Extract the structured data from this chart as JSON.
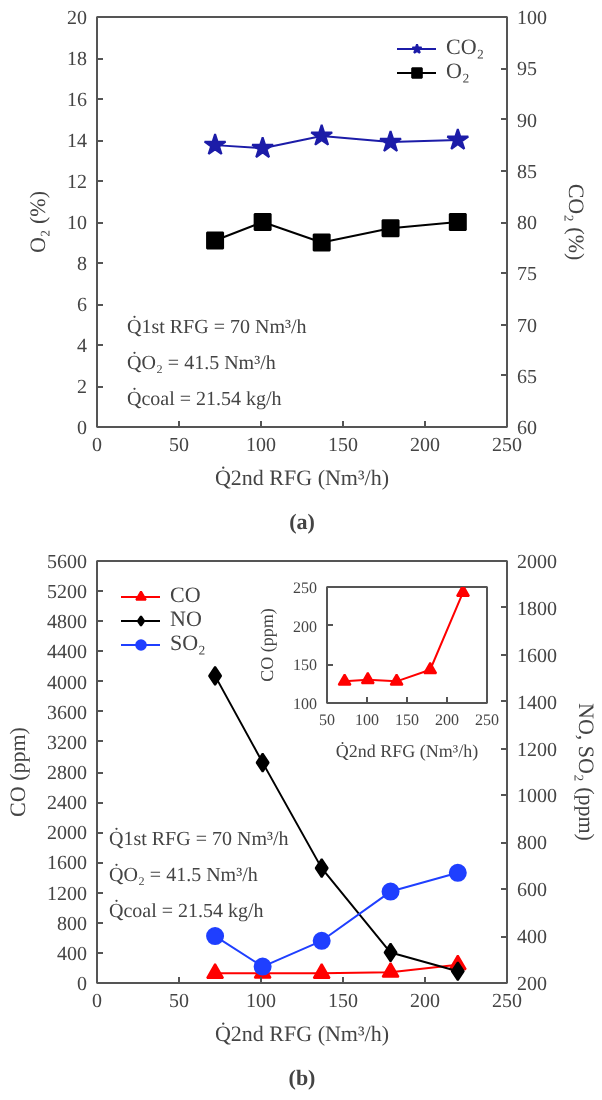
{
  "chart_data": [
    {
      "type": "line",
      "xlabel": "Q̇2nd RFG (Nm³/h)",
      "ylabel": "O₂ (%)",
      "y2label": "CO₂ (%)",
      "annotations": [
        "Q̇1st RFG = 70 Nm³/h",
        "Q̇O₂ = 41.5 Nm³/h",
        "Q̇coal = 21.54 kg/h",
        "(a)"
      ],
      "x": [
        72,
        101,
        137,
        179,
        220
      ],
      "series": [
        {
          "name": "CO₂",
          "color": "#1c1ca8",
          "axis": "y2",
          "marker": "star",
          "values": [
            87.5,
            87.2,
            88.4,
            87.8,
            88.0
          ]
        },
        {
          "name": "O₂",
          "color": "#000000",
          "marker": "square",
          "values": [
            9.1,
            10.0,
            9.0,
            9.7,
            10.0
          ]
        }
      ],
      "xlim": [
        0,
        250
      ],
      "xticks": [
        0,
        50,
        100,
        150,
        200,
        250
      ],
      "ylim": [
        0,
        20
      ],
      "yticks": [
        0,
        2,
        4,
        6,
        8,
        10,
        12,
        14,
        16,
        18,
        20
      ],
      "y2lim": [
        60,
        100
      ],
      "y2ticks": [
        60,
        65,
        70,
        75,
        80,
        85,
        90,
        95,
        100
      ],
      "grid": false,
      "legend": "top right",
      "line_style": "solid"
    },
    {
      "type": "line",
      "xlabel": "Q̇2nd RFG (Nm³/h)",
      "ylabel": "CO (ppm)",
      "y2label": "NO, SO₂ (ppm)",
      "annotations": [
        "Q̇1st RFG = 70 Nm³/h",
        "Q̇O₂ = 41.5 Nm³/h",
        "Q̇coal = 21.54 kg/h",
        "(b)"
      ],
      "x": [
        72,
        101,
        137,
        179,
        220
      ],
      "series": [
        {
          "name": "CO",
          "color": "#ff0000",
          "marker": "triangle",
          "values": [
            128,
            130,
            128,
            143,
            243
          ]
        },
        {
          "name": "NO",
          "color": "#000000",
          "axis": "y2",
          "marker": "diamond",
          "values": [
            1510,
            1140,
            690,
            330,
            250
          ]
        },
        {
          "name": "SO₂",
          "color": "#1f3fff",
          "axis": "y2",
          "marker": "circle",
          "values": [
            400,
            270,
            380,
            590,
            670
          ]
        }
      ],
      "xlim": [
        0,
        250
      ],
      "xticks": [
        0,
        50,
        100,
        150,
        200,
        250
      ],
      "ylim": [
        0,
        5600
      ],
      "yticks": [
        0,
        400,
        800,
        1200,
        1600,
        2000,
        2400,
        2800,
        3200,
        3600,
        4000,
        4400,
        4800,
        5200,
        5600
      ],
      "y2lim": [
        200,
        2000
      ],
      "y2ticks": [
        200,
        400,
        600,
        800,
        1000,
        1200,
        1400,
        1600,
        1800,
        2000
      ],
      "grid": false,
      "legend": "top left",
      "line_style": "solid"
    },
    {
      "type": "line",
      "xlabel": "Q̇2nd RFG (Nm³/h)",
      "ylabel": "CO (ppm)",
      "x": [
        72,
        101,
        137,
        179,
        220
      ],
      "series": [
        {
          "color": "#ff0000",
          "marker": "triangle",
          "values": [
            128,
            130,
            128,
            143,
            243
          ]
        }
      ],
      "xlim": [
        50,
        250
      ],
      "xticks": [
        50,
        100,
        150,
        200,
        250
      ],
      "ylim": [
        100,
        250
      ],
      "yticks": [
        100,
        150,
        200,
        250
      ],
      "grid": false,
      "legend": false,
      "line_style": "solid"
    }
  ]
}
